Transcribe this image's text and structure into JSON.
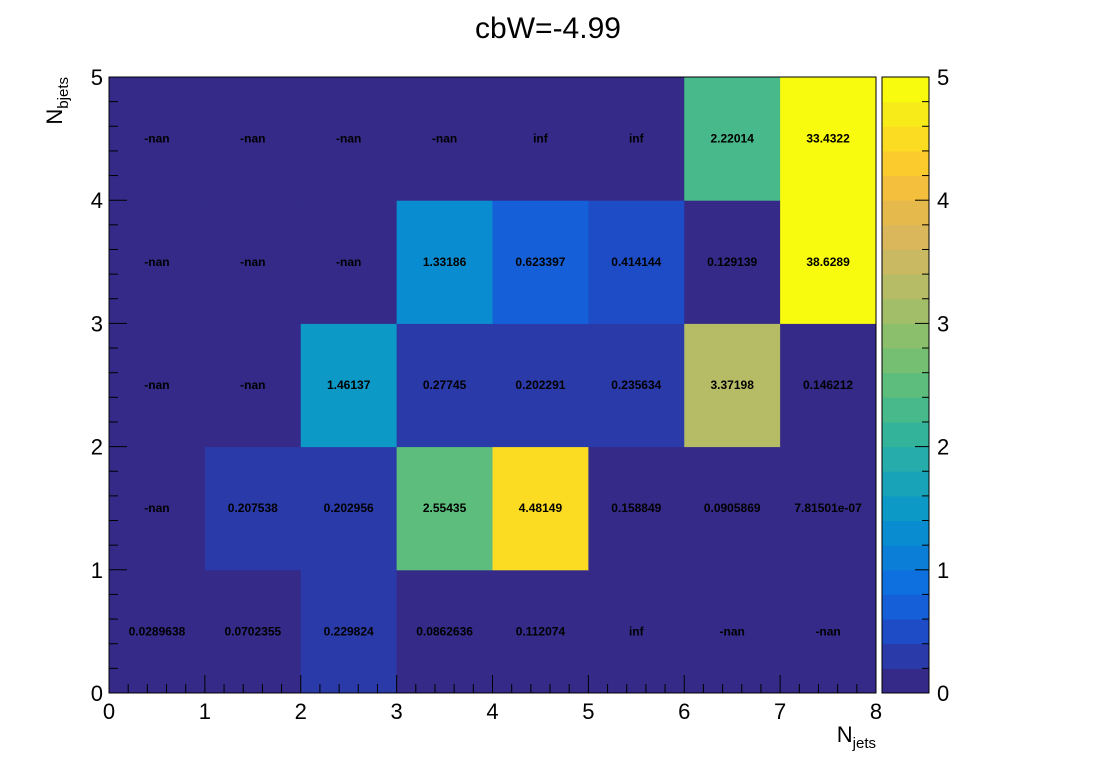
{
  "chart_data": {
    "type": "heatmap",
    "title": "cbW=-4.99",
    "xlabel": "N",
    "xlabel_sub": "jets",
    "ylabel": "N",
    "ylabel_sub": "bjets",
    "xlim": [
      0,
      8
    ],
    "ylim": [
      0,
      5
    ],
    "zlim": [
      0,
      5
    ],
    "x_ticks": [
      "0",
      "1",
      "2",
      "3",
      "4",
      "5",
      "6",
      "7",
      "8"
    ],
    "y_ticks": [
      "0",
      "1",
      "2",
      "3",
      "4",
      "5"
    ],
    "z_ticks": [
      "0",
      "1",
      "2",
      "3",
      "4",
      "5"
    ],
    "palette": [
      "#352a87",
      "#2a3aa9",
      "#1d4cc6",
      "#1560d8",
      "#0d70de",
      "#0b7fd8",
      "#0a8dd0",
      "#0d99c5",
      "#18a3b8",
      "#25acab",
      "#34b39b",
      "#47b98a",
      "#5cbd7c",
      "#74bf72",
      "#8cbf6c",
      "#a3be68",
      "#b6bc65",
      "#c8b962",
      "#d9b75a",
      "#e6b94d",
      "#f3bf3d",
      "#fbcb2e",
      "#fbdc23",
      "#f7ec1a",
      "#f9fb0e"
    ],
    "cells": [
      {
        "x": 0.5,
        "y": 0.5,
        "value": 0.0289638,
        "label": "0.0289638"
      },
      {
        "x": 1.5,
        "y": 0.5,
        "value": 0.0702355,
        "label": "0.0702355"
      },
      {
        "x": 2.5,
        "y": 0.5,
        "value": 0.229824,
        "label": "0.229824"
      },
      {
        "x": 3.5,
        "y": 0.5,
        "value": 0.0862636,
        "label": "0.0862636"
      },
      {
        "x": 4.5,
        "y": 0.5,
        "value": 0.112074,
        "label": "0.112074"
      },
      {
        "x": 5.5,
        "y": 0.5,
        "value": null,
        "label": "inf"
      },
      {
        "x": 6.5,
        "y": 0.5,
        "value": null,
        "label": "-nan"
      },
      {
        "x": 7.5,
        "y": 0.5,
        "value": null,
        "label": "-nan"
      },
      {
        "x": 0.5,
        "y": 1.5,
        "value": null,
        "label": "-nan"
      },
      {
        "x": 1.5,
        "y": 1.5,
        "value": 0.207538,
        "label": "0.207538"
      },
      {
        "x": 2.5,
        "y": 1.5,
        "value": 0.202956,
        "label": "0.202956"
      },
      {
        "x": 3.5,
        "y": 1.5,
        "value": 2.55435,
        "label": "2.55435"
      },
      {
        "x": 4.5,
        "y": 1.5,
        "value": 4.48149,
        "label": "4.48149"
      },
      {
        "x": 5.5,
        "y": 1.5,
        "value": 0.158849,
        "label": "0.158849"
      },
      {
        "x": 6.5,
        "y": 1.5,
        "value": 0.0905869,
        "label": "0.0905869"
      },
      {
        "x": 7.5,
        "y": 1.5,
        "value": 7.81501e-07,
        "label": "7.81501e-07"
      },
      {
        "x": 0.5,
        "y": 2.5,
        "value": null,
        "label": "-nan"
      },
      {
        "x": 1.5,
        "y": 2.5,
        "value": null,
        "label": "-nan"
      },
      {
        "x": 2.5,
        "y": 2.5,
        "value": 1.46137,
        "label": "1.46137"
      },
      {
        "x": 3.5,
        "y": 2.5,
        "value": 0.27745,
        "label": "0.27745"
      },
      {
        "x": 4.5,
        "y": 2.5,
        "value": 0.202291,
        "label": "0.202291"
      },
      {
        "x": 5.5,
        "y": 2.5,
        "value": 0.235634,
        "label": "0.235634"
      },
      {
        "x": 6.5,
        "y": 2.5,
        "value": 3.37198,
        "label": "3.37198"
      },
      {
        "x": 7.5,
        "y": 2.5,
        "value": 0.146212,
        "label": "0.146212"
      },
      {
        "x": 0.5,
        "y": 3.5,
        "value": null,
        "label": "-nan"
      },
      {
        "x": 1.5,
        "y": 3.5,
        "value": null,
        "label": "-nan"
      },
      {
        "x": 2.5,
        "y": 3.5,
        "value": null,
        "label": "-nan"
      },
      {
        "x": 3.5,
        "y": 3.5,
        "value": 1.33186,
        "label": "1.33186"
      },
      {
        "x": 4.5,
        "y": 3.5,
        "value": 0.623397,
        "label": "0.623397"
      },
      {
        "x": 5.5,
        "y": 3.5,
        "value": 0.414144,
        "label": "0.414144"
      },
      {
        "x": 6.5,
        "y": 3.5,
        "value": 0.129139,
        "label": "0.129139"
      },
      {
        "x": 7.5,
        "y": 3.5,
        "value": 38.6289,
        "label": "38.6289"
      },
      {
        "x": 0.5,
        "y": 4.5,
        "value": null,
        "label": "-nan"
      },
      {
        "x": 1.5,
        "y": 4.5,
        "value": null,
        "label": "-nan"
      },
      {
        "x": 2.5,
        "y": 4.5,
        "value": null,
        "label": "-nan"
      },
      {
        "x": 3.5,
        "y": 4.5,
        "value": null,
        "label": "-nan"
      },
      {
        "x": 4.5,
        "y": 4.5,
        "value": null,
        "label": "inf"
      },
      {
        "x": 5.5,
        "y": 4.5,
        "value": null,
        "label": "inf"
      },
      {
        "x": 6.5,
        "y": 4.5,
        "value": 2.22014,
        "label": "2.22014"
      },
      {
        "x": 7.5,
        "y": 4.5,
        "value": 33.4322,
        "label": "33.4322"
      }
    ]
  }
}
